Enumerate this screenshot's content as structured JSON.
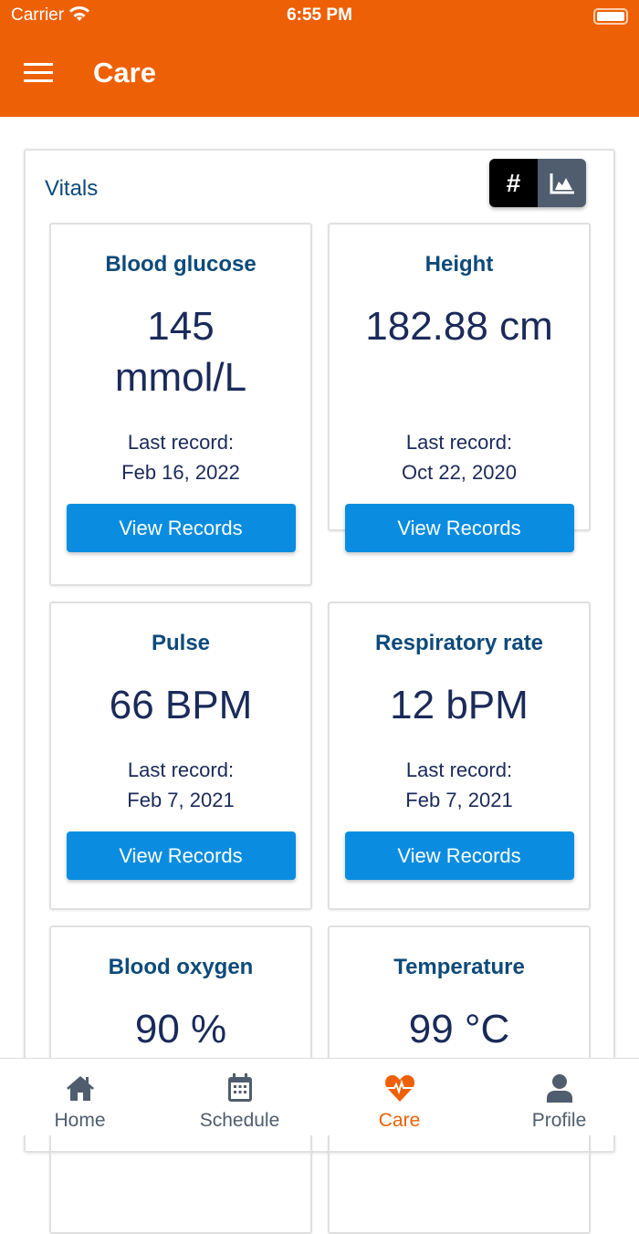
{
  "status": {
    "carrier": "Carrier",
    "time": "6:55 PM"
  },
  "header": {
    "title": "Care"
  },
  "section": {
    "title": "Vitals",
    "toggle": [
      {
        "icon": "hash-icon",
        "label": "#",
        "active": true
      },
      {
        "icon": "area-chart-icon",
        "active": false
      }
    ]
  },
  "last_record_label": "Last record:",
  "button_label": "View Records",
  "cards": [
    {
      "title": "Blood glucose",
      "value": "145 mmol/L",
      "date": "Feb 16, 2022"
    },
    {
      "title": "Height",
      "value": "182.88 cm",
      "date": "Oct 22, 2020"
    },
    {
      "title": "Pulse",
      "value": "66 BPM",
      "date": "Feb 7, 2021"
    },
    {
      "title": "Respiratory rate",
      "value": "12 bPM",
      "date": "Feb 7, 2021"
    },
    {
      "title": "Blood oxygen",
      "value": "90 %"
    },
    {
      "title": "Temperature",
      "value": "99 °C"
    }
  ],
  "tabs": [
    {
      "label": "Home",
      "icon": "home-icon"
    },
    {
      "label": "Schedule",
      "icon": "calendar-icon"
    },
    {
      "label": "Care",
      "icon": "heart-pulse-icon",
      "active": true
    },
    {
      "label": "Profile",
      "icon": "user-icon"
    }
  ],
  "colors": {
    "accent": "#ee6005",
    "button": "#0a8de0",
    "title": "#0d4a7a"
  }
}
